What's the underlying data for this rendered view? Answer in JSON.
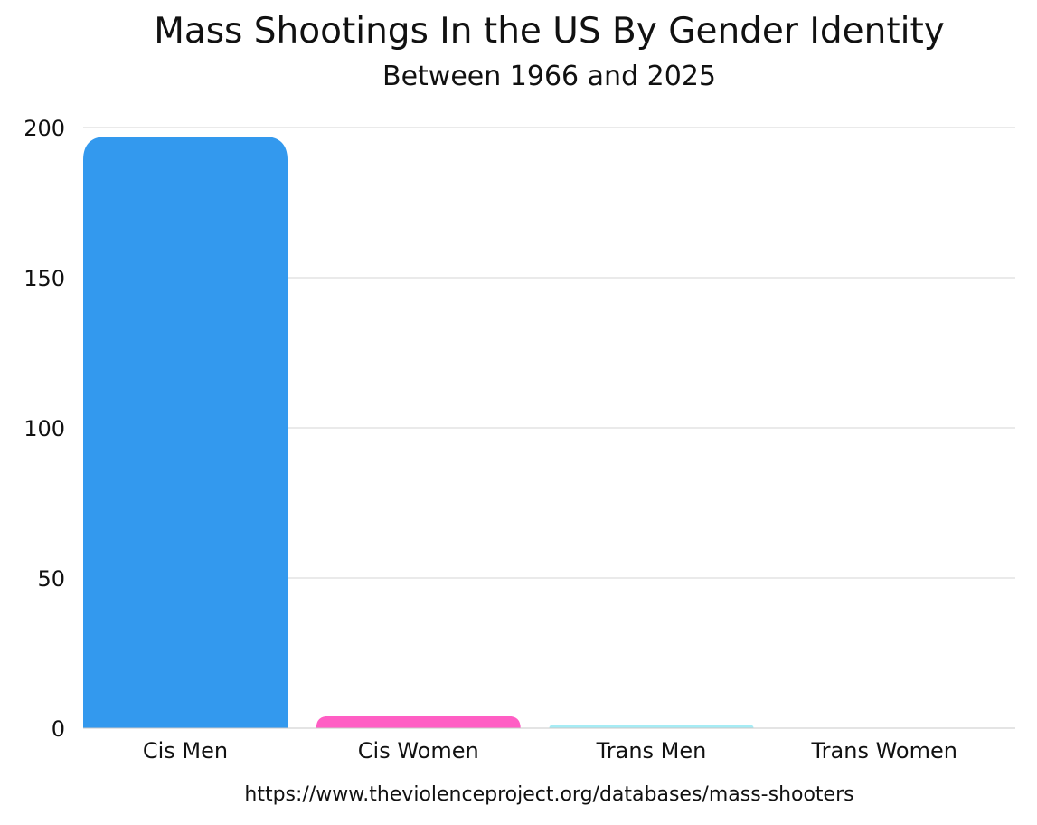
{
  "chart_data": {
    "type": "bar",
    "title": "Mass Shootings In the US By Gender Identity",
    "subtitle": "Between 1966 and 2025",
    "source": "https://www.theviolenceproject.org/databases/mass-shooters",
    "categories": [
      "Cis Men",
      "Cis Women",
      "Trans Men",
      "Trans Women"
    ],
    "values": [
      197,
      4,
      1,
      0
    ],
    "colors": [
      "#3399ee",
      "#ff5ec4",
      "#a6ecf5",
      "#cccccc"
    ],
    "ylim": [
      0,
      200
    ],
    "yticks": [
      0,
      50,
      100,
      150,
      200
    ],
    "xlabel": "",
    "ylabel": "",
    "grid": true,
    "legend": "none"
  }
}
